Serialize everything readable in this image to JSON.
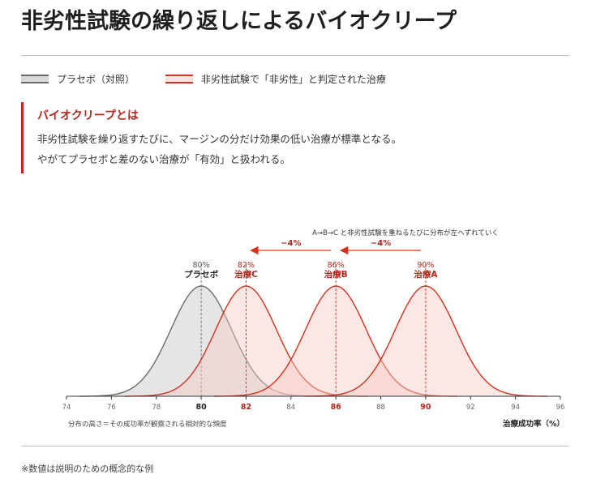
{
  "title": "非劣性試験の繰り返しによるバイオクリープ",
  "legend": {
    "placebo": "プラセボ（対照）",
    "treatment": "非劣性試験で「非劣性」と判定された治療"
  },
  "callout": {
    "heading": "バイオクリープとは",
    "line1": "非劣性試験を繰り返すたびに、マージンの分だけ効果の低い治療が標準となる。",
    "line2": "やがてプラセボと差のない治療が「有効」と扱われる。"
  },
  "footnote": "※数値は説明のための概念的な例",
  "colors": {
    "placebo_line": "#6b6b6b",
    "placebo_fill": "#cfcfcf",
    "treatment_line": "#d7301e",
    "treatment_fill": "#f6c9c1",
    "accent_text": "#b3261b"
  },
  "chart_data": {
    "type": "area",
    "xlabel": "治療成功率（%）",
    "ylabel_note": "分布の高さ＝その成功率が観察される相対的な頻度",
    "xlim": [
      74,
      96
    ],
    "xticks": [
      74,
      76,
      78,
      80,
      82,
      84,
      86,
      88,
      90,
      92,
      94,
      96
    ],
    "highlight_ticks": [
      80,
      82,
      86,
      90
    ],
    "series": [
      {
        "name": "プラセボ",
        "percent_label": "80%",
        "center": 80,
        "sd": 1.35,
        "kind": "placebo"
      },
      {
        "name": "治療C",
        "percent_label": "82%",
        "center": 82,
        "sd": 1.35,
        "kind": "treatment"
      },
      {
        "name": "治療B",
        "percent_label": "86%",
        "center": 86,
        "sd": 1.35,
        "kind": "treatment"
      },
      {
        "name": "治療A",
        "percent_label": "90%",
        "center": 90,
        "sd": 1.35,
        "kind": "treatment"
      }
    ],
    "shifts": [
      {
        "from": 90,
        "to": 86,
        "label": "−4%"
      },
      {
        "from": 86,
        "to": 82,
        "label": "−4%"
      }
    ],
    "shift_caption": "A→B→C と非劣性試験を重ねるたびに分布が左へずれていく"
  }
}
